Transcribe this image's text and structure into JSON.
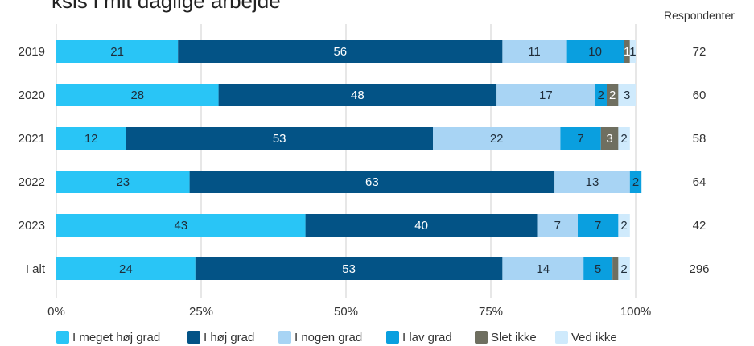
{
  "title": "ksis i mit daglige arbejde",
  "respondents_header": "Respondenter",
  "chart_data": {
    "type": "bar",
    "orientation": "horizontal",
    "stacked": true,
    "categories": [
      "2019",
      "2020",
      "2021",
      "2022",
      "2023",
      "I alt"
    ],
    "series": [
      {
        "name": "I meget høj grad",
        "color": "#29c5f6",
        "values": [
          21,
          28,
          12,
          23,
          43,
          24
        ]
      },
      {
        "name": "I høj grad",
        "color": "#035386",
        "values": [
          56,
          48,
          53,
          63,
          40,
          53
        ]
      },
      {
        "name": "I nogen grad",
        "color": "#a8d4f4",
        "values": [
          11,
          17,
          22,
          13,
          7,
          14
        ]
      },
      {
        "name": "I lav grad",
        "color": "#0a9fdf",
        "values": [
          10,
          2,
          7,
          2,
          7,
          5
        ]
      },
      {
        "name": "Slet ikke",
        "color": "#6f6f60",
        "values": [
          1,
          2,
          3,
          0,
          0,
          1
        ]
      },
      {
        "name": "Ved ikke",
        "color": "#cfeafc",
        "values": [
          1,
          3,
          2,
          0,
          2,
          2
        ]
      }
    ],
    "segment_labels": [
      [
        "21",
        "56",
        "11",
        "10",
        "1",
        "1"
      ],
      [
        "28",
        "48",
        "17",
        "2",
        "2",
        "3"
      ],
      [
        "12",
        "53",
        "22",
        "7",
        "3",
        "2"
      ],
      [
        "23",
        "63",
        "13",
        "2",
        "",
        ""
      ],
      [
        "43",
        "40",
        "7",
        "7",
        "",
        "2"
      ],
      [
        "24",
        "53",
        "14",
        "5",
        "",
        "2"
      ]
    ],
    "respondents": [
      "72",
      "60",
      "58",
      "64",
      "42",
      "296"
    ],
    "x_ticks": [
      "0%",
      "25%",
      "50%",
      "75%",
      "100%"
    ],
    "xlim": [
      0,
      100
    ],
    "grid": true,
    "legend_position": "bottom"
  }
}
